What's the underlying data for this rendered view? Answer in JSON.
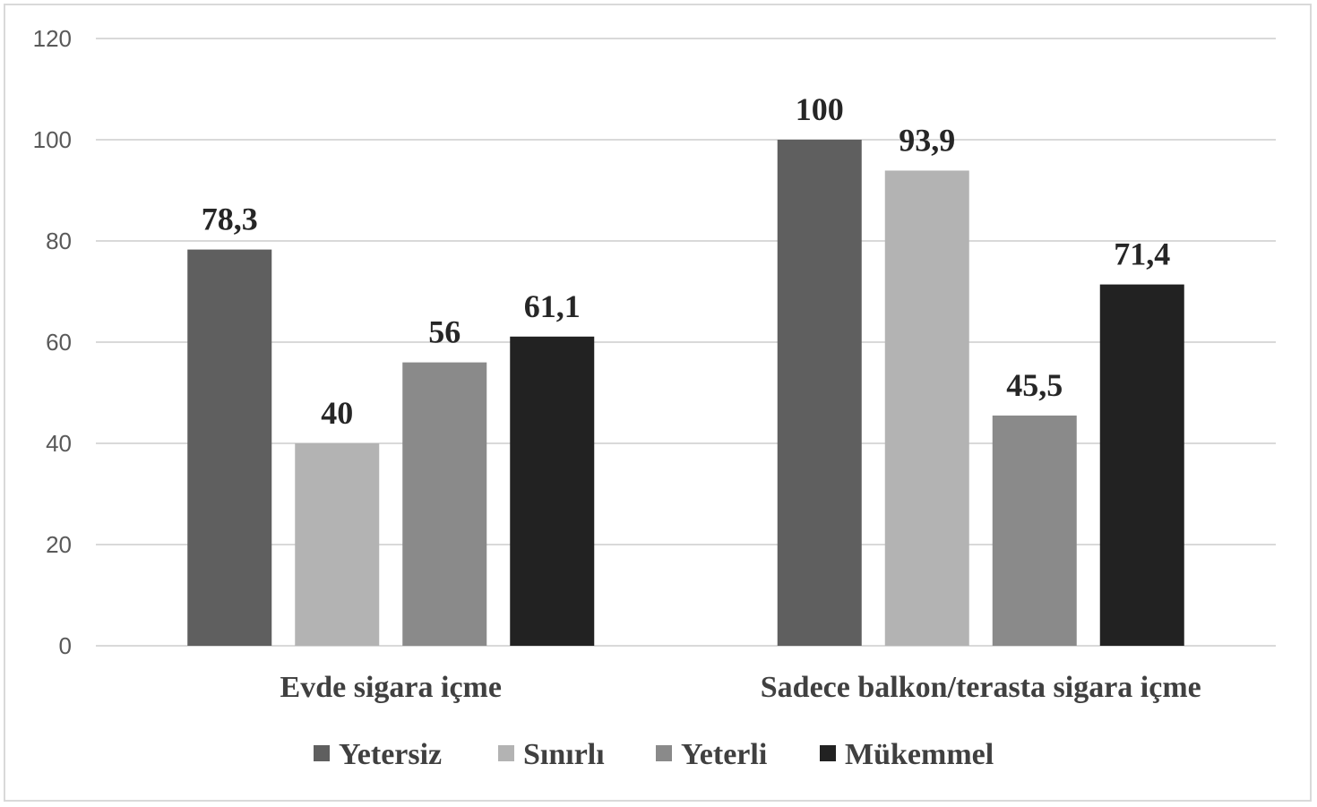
{
  "chart_data": {
    "type": "bar",
    "categories": [
      "Evde sigara içme",
      "Sadece balkon/terasta sigara içme"
    ],
    "series": [
      {
        "name": "Yetersiz",
        "color": "#5f5f5f",
        "values": [
          78.3,
          100
        ]
      },
      {
        "name": "Sınırlı",
        "color": "#b3b3b3",
        "values": [
          40,
          93.9
        ]
      },
      {
        "name": "Yeterli",
        "color": "#8a8a8a",
        "values": [
          56,
          45.5
        ]
      },
      {
        "name": "Mükemmel",
        "color": "#222222",
        "values": [
          61.1,
          71.4
        ]
      }
    ],
    "data_labels": [
      [
        "78,3",
        "100"
      ],
      [
        "40",
        "93,9"
      ],
      [
        "56",
        "45,5"
      ],
      [
        "61,1",
        "71,4"
      ]
    ],
    "yticks": [
      "0",
      "20",
      "40",
      "60",
      "80",
      "100",
      "120"
    ],
    "ylim": [
      0,
      120
    ],
    "grid": true,
    "legend_position": "bottom",
    "title": "",
    "xlabel": "",
    "ylabel": ""
  }
}
